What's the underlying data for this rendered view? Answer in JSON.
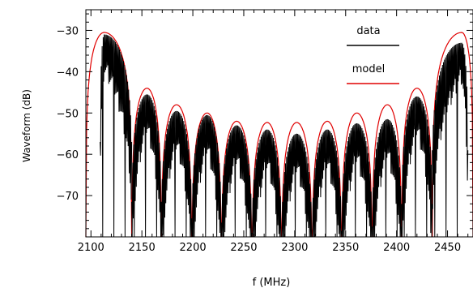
{
  "chart_data": {
    "type": "line",
    "title": "",
    "xlabel": "f (MHz)",
    "ylabel": "Waveform (dB)",
    "xlim": [
      2095,
      2475
    ],
    "ylim": [
      -80,
      -25
    ],
    "xticks": [
      2100,
      2150,
      2200,
      2250,
      2300,
      2350,
      2400,
      2450
    ],
    "yticks": [
      -30,
      -40,
      -50,
      -60,
      -70
    ],
    "grid": false,
    "legend": {
      "placement": "top-right"
    },
    "series": [
      {
        "name": "data",
        "color": "#000000"
      },
      {
        "name": "model",
        "color": "#e00000"
      }
    ],
    "model_lobes": [
      {
        "start": 2095,
        "end": 2140,
        "peak_x": 2113,
        "peak_y": -30.5
      },
      {
        "start": 2140,
        "end": 2169,
        "peak_x": 2155,
        "peak_y": -44
      },
      {
        "start": 2169,
        "end": 2199,
        "peak_x": 2184,
        "peak_y": -48
      },
      {
        "start": 2199,
        "end": 2228,
        "peak_x": 2214,
        "peak_y": -50
      },
      {
        "start": 2228,
        "end": 2258,
        "peak_x": 2243,
        "peak_y": -52
      },
      {
        "start": 2258,
        "end": 2287,
        "peak_x": 2273,
        "peak_y": -52.3
      },
      {
        "start": 2287,
        "end": 2317,
        "peak_x": 2302,
        "peak_y": -52.3
      },
      {
        "start": 2317,
        "end": 2346,
        "peak_x": 2332,
        "peak_y": -52
      },
      {
        "start": 2346,
        "end": 2376,
        "peak_x": 2361,
        "peak_y": -50
      },
      {
        "start": 2376,
        "end": 2405,
        "peak_x": 2391,
        "peak_y": -48
      },
      {
        "start": 2405,
        "end": 2435,
        "peak_x": 2420,
        "peak_y": -44
      },
      {
        "start": 2435,
        "end": 2475,
        "peak_x": 2464,
        "peak_y": -30.5
      }
    ],
    "data_lobes": [
      {
        "start": 2109,
        "end": 2140,
        "peak_x": 2113,
        "peak_y": -31
      },
      {
        "start": 2140,
        "end": 2169,
        "peak_x": 2155,
        "peak_y": -45.5
      },
      {
        "start": 2169,
        "end": 2199,
        "peak_x": 2184,
        "peak_y": -49.5
      },
      {
        "start": 2199,
        "end": 2228,
        "peak_x": 2214,
        "peak_y": -50.5
      },
      {
        "start": 2228,
        "end": 2258,
        "peak_x": 2243,
        "peak_y": -53
      },
      {
        "start": 2258,
        "end": 2287,
        "peak_x": 2273,
        "peak_y": -54
      },
      {
        "start": 2287,
        "end": 2317,
        "peak_x": 2302,
        "peak_y": -55
      },
      {
        "start": 2317,
        "end": 2346,
        "peak_x": 2332,
        "peak_y": -54
      },
      {
        "start": 2346,
        "end": 2376,
        "peak_x": 2361,
        "peak_y": -52.5
      },
      {
        "start": 2376,
        "end": 2405,
        "peak_x": 2391,
        "peak_y": -51.5
      },
      {
        "start": 2405,
        "end": 2435,
        "peak_x": 2420,
        "peak_y": -46
      },
      {
        "start": 2435,
        "end": 2470,
        "peak_x": 2464,
        "peak_y": -33
      }
    ]
  }
}
